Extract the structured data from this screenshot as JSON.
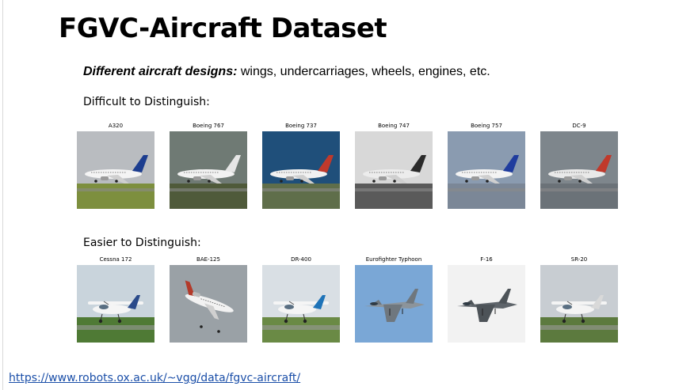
{
  "title": "FGVC-Aircraft Dataset",
  "subtitle": {
    "emphasis": "Different aircraft designs:",
    "rest": " wings, undercarriages, wheels, engines, etc."
  },
  "difficult": {
    "label": "Difficult to Distinguish:",
    "aircraft": [
      {
        "name": "A320",
        "icon": "airliner-photo",
        "sky": "#b9bcc0",
        "ground": "#7d8f3e",
        "body": "#f4f4f4",
        "tail": "#1c3d8f"
      },
      {
        "name": "Boeing 767",
        "icon": "airliner-photo",
        "sky": "#6f7a74",
        "ground": "#4f5a3a",
        "body": "#f2f2f2",
        "tail": "#e6e6e6"
      },
      {
        "name": "Boeing 737",
        "icon": "airliner-photo",
        "sky": "#1f4f7a",
        "ground": "#5f6e4a",
        "body": "#f1f1f1",
        "tail": "#c0392b"
      },
      {
        "name": "Boeing 747",
        "icon": "airliner-photo",
        "sky": "#d8d8d8",
        "ground": "#5a5a5a",
        "body": "#ececec",
        "tail": "#2a2a2a"
      },
      {
        "name": "Boeing 757",
        "icon": "airliner-photo",
        "sky": "#8a9bb0",
        "ground": "#7b8797",
        "body": "#f3f3f3",
        "tail": "#1f3c9e"
      },
      {
        "name": "DC-9",
        "icon": "airliner-photo",
        "sky": "#7e868c",
        "ground": "#6b7278",
        "body": "#e9e9e9",
        "tail": "#c0392b"
      }
    ]
  },
  "easier": {
    "label": "Easier to Distinguish:",
    "aircraft": [
      {
        "name": "Cessna 172",
        "icon": "light-plane-photo",
        "sky": "#c9d4dc",
        "ground": "#4f7a35",
        "body": "#f5f5f5",
        "tail": "#2a4a8a"
      },
      {
        "name": "BAE-125",
        "icon": "business-jet-photo",
        "sky": "#9aa1a6",
        "ground": "#9aa1a6",
        "body": "#f2f2f2",
        "tail": "#b33a2a"
      },
      {
        "name": "DR-400",
        "icon": "light-plane-photo",
        "sky": "#d9dfe4",
        "ground": "#6a8a45",
        "body": "#f5f5f5",
        "tail": "#1e73b8"
      },
      {
        "name": "Eurofighter Typhoon",
        "icon": "fighter-jet-photo",
        "sky": "#7aa7d6",
        "ground": "#7aa7d6",
        "body": "#8c949b",
        "tail": "#6f777e"
      },
      {
        "name": "F-16",
        "icon": "fighter-jet-photo",
        "sky": "#f2f2f2",
        "ground": "#f2f2f2",
        "body": "#5e646a",
        "tail": "#4d5358"
      },
      {
        "name": "SR-20",
        "icon": "light-plane-photo",
        "sky": "#c8cdd2",
        "ground": "#5c7a3e",
        "body": "#f4f4f4",
        "tail": "#d9d9d9"
      }
    ]
  },
  "link": {
    "text": "https://www.robots.ox.ac.uk/~vgg/data/fgvc-aircraft/"
  },
  "colors": {
    "link": "#1a4ea8",
    "text": "#000000",
    "background": "#ffffff"
  }
}
